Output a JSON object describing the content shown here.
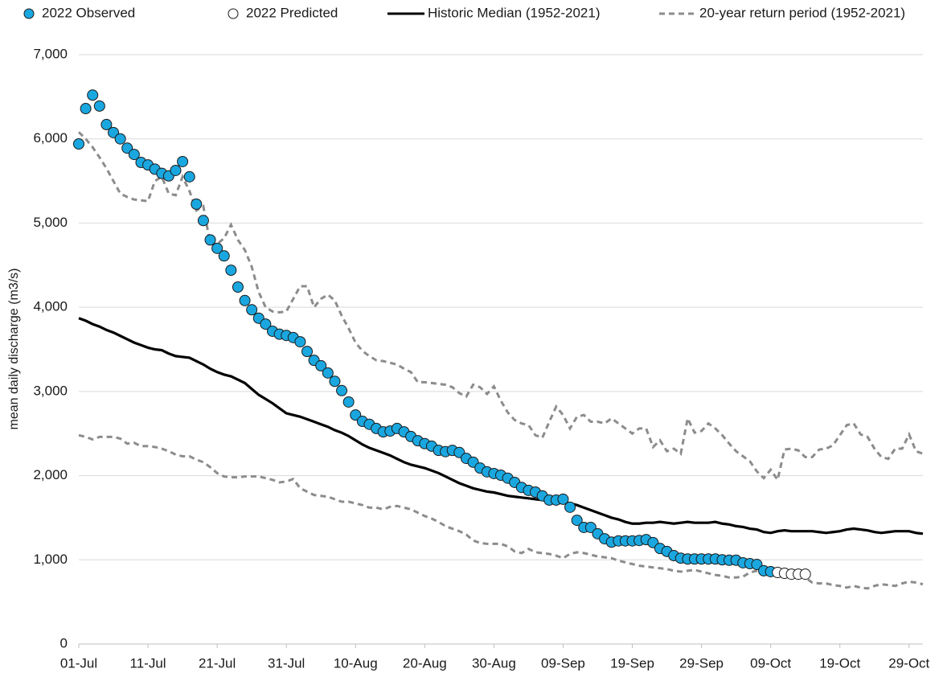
{
  "chart_data": {
    "type": "line",
    "y_label": "mean daily discharge (m3/s)",
    "categories": [
      "01-Jul",
      null,
      null,
      null,
      null,
      null,
      null,
      null,
      null,
      null,
      "11-Jul",
      null,
      null,
      null,
      null,
      null,
      null,
      null,
      null,
      null,
      "21-Jul",
      null,
      null,
      null,
      null,
      null,
      null,
      null,
      null,
      null,
      "31-Jul",
      null,
      null,
      null,
      null,
      null,
      null,
      null,
      null,
      null,
      "10-Aug",
      null,
      null,
      null,
      null,
      null,
      null,
      null,
      null,
      null,
      "20-Aug",
      null,
      null,
      null,
      null,
      null,
      null,
      null,
      null,
      null,
      "30-Aug",
      null,
      null,
      null,
      null,
      null,
      null,
      null,
      null,
      null,
      "09-Sep",
      null,
      null,
      null,
      null,
      null,
      null,
      null,
      null,
      null,
      "19-Sep",
      null,
      null,
      null,
      null,
      null,
      null,
      null,
      null,
      null,
      "29-Sep",
      null,
      null,
      null,
      null,
      null,
      null,
      null,
      null,
      null,
      "09-Oct",
      null,
      null,
      null,
      null,
      null,
      null,
      null,
      null,
      null,
      "19-Oct",
      null,
      null,
      null,
      null,
      null,
      null,
      null,
      null,
      null,
      "29-Oct",
      null,
      null
    ],
    "ylim": [
      0,
      7000
    ],
    "yticks": [
      0,
      {
        "value": 1000,
        "label": "1,000"
      },
      {
        "value": 2000,
        "label": "2,000"
      },
      {
        "value": 3000,
        "label": "3,000"
      },
      {
        "value": 4000,
        "label": "4,000"
      },
      {
        "value": 5000,
        "label": "5,000"
      },
      {
        "value": 6000,
        "label": "6,000"
      },
      {
        "value": 7000,
        "label": "7,000"
      }
    ],
    "grid": true,
    "series": [
      {
        "name": "2022 Observed",
        "style": "marker",
        "color": "#1aa7e0",
        "values": [
          5940,
          6360,
          6520,
          6390,
          6170,
          6075,
          6000,
          5890,
          5815,
          5720,
          5690,
          5640,
          5590,
          5560,
          5625,
          5730,
          5550,
          5225,
          5030,
          4800,
          4700,
          4610,
          4440,
          4240,
          4080,
          3970,
          3870,
          3800,
          3715,
          3680,
          3665,
          3640,
          3590,
          3475,
          3370,
          3305,
          3220,
          3120,
          3010,
          2875,
          2720,
          2645,
          2610,
          2560,
          2520,
          2530,
          2560,
          2520,
          2465,
          2415,
          2380,
          2350,
          2300,
          2285,
          2300,
          2275,
          2205,
          2160,
          2090,
          2045,
          2025,
          2005,
          1970,
          1920,
          1860,
          1825,
          1805,
          1760,
          1710,
          1710,
          1720,
          1625,
          1470,
          1385,
          1385,
          1310,
          1250,
          1210,
          1225,
          1225,
          1225,
          1230,
          1240,
          1205,
          1135,
          1100,
          1050,
          1020,
          1010,
          1010,
          1010,
          1010,
          1010,
          1000,
          995,
          995,
          965,
          955,
          945,
          870,
          860,
          null,
          null,
          null,
          null,
          null,
          null,
          null,
          null,
          null,
          null,
          null,
          null,
          null,
          null,
          null,
          null,
          null,
          null,
          null,
          null,
          null,
          null
        ]
      },
      {
        "name": "2022 Predicted",
        "style": "marker",
        "color": "#ffffff",
        "values": [
          null,
          null,
          null,
          null,
          null,
          null,
          null,
          null,
          null,
          null,
          null,
          null,
          null,
          null,
          null,
          null,
          null,
          null,
          null,
          null,
          null,
          null,
          null,
          null,
          null,
          null,
          null,
          null,
          null,
          null,
          null,
          null,
          null,
          null,
          null,
          null,
          null,
          null,
          null,
          null,
          null,
          null,
          null,
          null,
          null,
          null,
          null,
          null,
          null,
          null,
          null,
          null,
          null,
          null,
          null,
          null,
          null,
          null,
          null,
          null,
          null,
          null,
          null,
          null,
          null,
          null,
          null,
          null,
          null,
          null,
          null,
          null,
          null,
          null,
          null,
          null,
          null,
          null,
          null,
          null,
          null,
          null,
          null,
          null,
          null,
          null,
          null,
          null,
          null,
          null,
          null,
          null,
          null,
          null,
          null,
          null,
          null,
          null,
          null,
          null,
          null,
          850,
          840,
          830,
          830,
          830,
          null,
          null,
          null,
          null,
          null,
          null,
          null,
          null,
          null,
          null,
          null,
          null,
          null,
          null,
          null,
          null,
          null
        ]
      },
      {
        "name": "Historic Median (1952-2021)",
        "style": "solid",
        "color": "#000000",
        "values": [
          3870,
          3840,
          3800,
          3770,
          3730,
          3700,
          3660,
          3620,
          3580,
          3550,
          3520,
          3500,
          3490,
          3450,
          3420,
          3410,
          3400,
          3360,
          3320,
          3270,
          3230,
          3200,
          3180,
          3140,
          3100,
          3030,
          2960,
          2910,
          2860,
          2800,
          2740,
          2720,
          2700,
          2670,
          2640,
          2610,
          2580,
          2540,
          2510,
          2470,
          2420,
          2370,
          2330,
          2300,
          2270,
          2240,
          2200,
          2160,
          2130,
          2110,
          2090,
          2060,
          2030,
          1990,
          1950,
          1910,
          1880,
          1850,
          1830,
          1810,
          1800,
          1780,
          1760,
          1750,
          1740,
          1730,
          1720,
          1710,
          1700,
          1690,
          1680,
          1670,
          1650,
          1620,
          1590,
          1560,
          1530,
          1500,
          1480,
          1450,
          1430,
          1430,
          1440,
          1440,
          1450,
          1440,
          1430,
          1440,
          1450,
          1440,
          1440,
          1440,
          1450,
          1430,
          1420,
          1400,
          1390,
          1370,
          1360,
          1330,
          1320,
          1340,
          1350,
          1340,
          1340,
          1340,
          1340,
          1330,
          1320,
          1330,
          1340,
          1360,
          1370,
          1360,
          1350,
          1330,
          1320,
          1330,
          1340,
          1340,
          1340,
          1320,
          1310
        ]
      },
      {
        "name": "20-year return period (1952-2021)",
        "style": "dashed",
        "color": "#8c8c8c",
        "upper": [
          6080,
          6000,
          5900,
          5780,
          5650,
          5500,
          5350,
          5310,
          5280,
          5270,
          5260,
          5500,
          5550,
          5350,
          5330,
          5550,
          5380,
          5150,
          5200,
          4750,
          4750,
          4820,
          4980,
          4800,
          4680,
          4480,
          4180,
          4000,
          3950,
          3940,
          3950,
          4100,
          4250,
          4250,
          4000,
          4100,
          4150,
          4080,
          3900,
          3750,
          3580,
          3480,
          3420,
          3370,
          3360,
          3340,
          3320,
          3270,
          3230,
          3110,
          3110,
          3100,
          3090,
          3080,
          3050,
          2980,
          2940,
          3080,
          3050,
          2970,
          3060,
          2890,
          2750,
          2660,
          2620,
          2600,
          2480,
          2450,
          2640,
          2820,
          2720,
          2560,
          2700,
          2720,
          2640,
          2640,
          2620,
          2680,
          2620,
          2560,
          2500,
          2560,
          2560,
          2340,
          2420,
          2290,
          2320,
          2260,
          2680,
          2510,
          2530,
          2620,
          2560,
          2480,
          2380,
          2290,
          2230,
          2170,
          2050,
          1970,
          2070,
          1950,
          2310,
          2320,
          2300,
          2220,
          2220,
          2310,
          2320,
          2360,
          2480,
          2600,
          2620,
          2490,
          2460,
          2320,
          2220,
          2200,
          2320,
          2320,
          2490,
          2290,
          2260
        ],
        "lower": [
          2480,
          2460,
          2430,
          2460,
          2460,
          2460,
          2440,
          2380,
          2390,
          2350,
          2350,
          2340,
          2320,
          2290,
          2250,
          2230,
          2230,
          2190,
          2160,
          2100,
          2030,
          1990,
          1980,
          1980,
          1990,
          1990,
          1990,
          1970,
          1950,
          1920,
          1930,
          1960,
          1850,
          1810,
          1770,
          1760,
          1750,
          1720,
          1690,
          1690,
          1670,
          1650,
          1620,
          1620,
          1600,
          1630,
          1640,
          1620,
          1600,
          1560,
          1520,
          1490,
          1450,
          1400,
          1370,
          1340,
          1300,
          1230,
          1200,
          1190,
          1190,
          1190,
          1160,
          1100,
          1080,
          1130,
          1090,
          1080,
          1070,
          1050,
          1020,
          1070,
          1090,
          1080,
          1060,
          1040,
          1030,
          1020,
          990,
          970,
          950,
          930,
          920,
          910,
          900,
          890,
          870,
          860,
          870,
          880,
          860,
          840,
          820,
          810,
          790,
          790,
          800,
          850,
          870,
          880,
          880,
          860,
          850,
          830,
          800,
          790,
          730,
          720,
          720,
          700,
          690,
          670,
          690,
          670,
          660,
          690,
          710,
          700,
          690,
          720,
          740,
          730,
          710
        ]
      }
    ]
  }
}
